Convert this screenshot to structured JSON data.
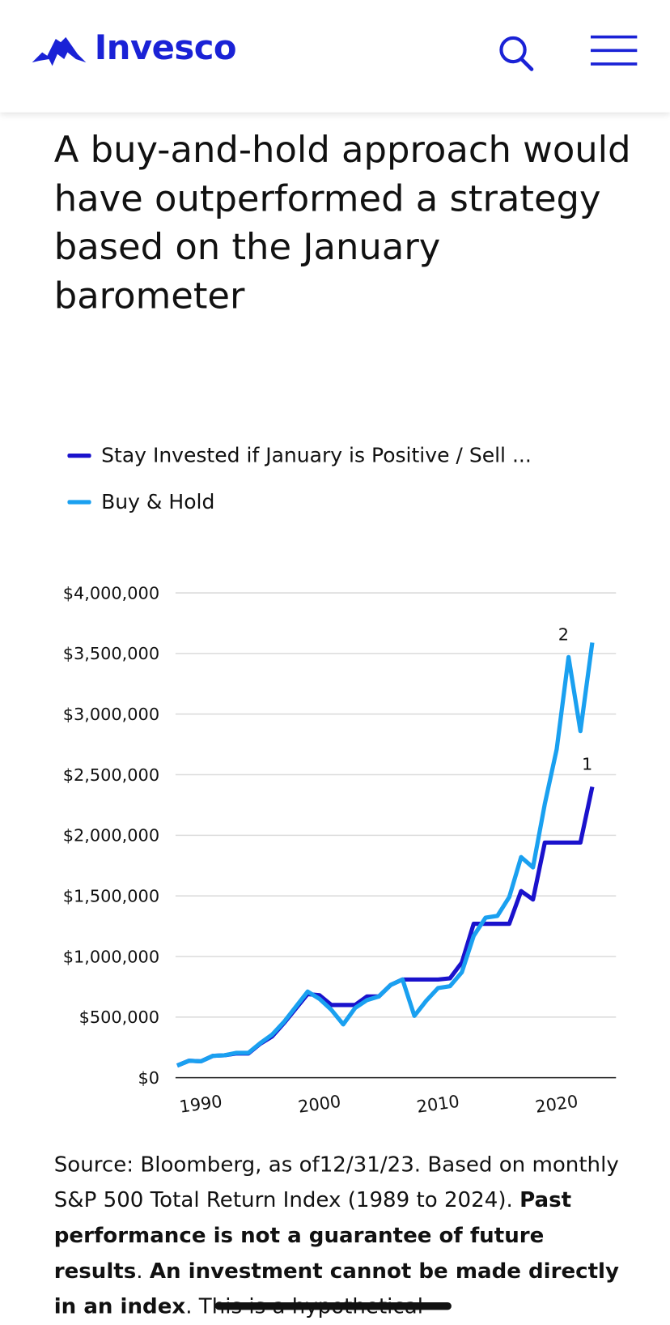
{
  "header": {
    "logo": "Invesco"
  },
  "title": "A buy-and-hold approach would have outperformed a strategy based on the January barometer",
  "chart_data": {
    "type": "line",
    "x": [
      1988,
      1989,
      1990,
      1991,
      1992,
      1993,
      1994,
      1995,
      1996,
      1997,
      1998,
      1999,
      2000,
      2001,
      2002,
      2003,
      2004,
      2005,
      2006,
      2007,
      2008,
      2009,
      2010,
      2011,
      2012,
      2013,
      2014,
      2015,
      2016,
      2017,
      2018,
      2019,
      2020,
      2021,
      2022,
      2023
    ],
    "series": [
      {
        "name": "Stay Invested if January is Positive / Sell ...",
        "color": "#1a12cc",
        "values": [
          100000,
          140000,
          135000,
          180000,
          185000,
          200000,
          200000,
          280000,
          340000,
          450000,
          570000,
          690000,
          680000,
          600000,
          600000,
          600000,
          670000,
          670000,
          765000,
          810000,
          810000,
          810000,
          810000,
          820000,
          950000,
          1270000,
          1270000,
          1270000,
          1270000,
          1540000,
          1470000,
          1940000,
          1940000,
          1940000,
          1940000,
          2400000
        ]
      },
      {
        "name": "Buy & Hold",
        "color": "#1aa0f0",
        "values": [
          100000,
          140000,
          135000,
          180000,
          185000,
          205000,
          205000,
          285000,
          355000,
          460000,
          585000,
          710000,
          650000,
          560000,
          440000,
          575000,
          640000,
          670000,
          765000,
          810000,
          510000,
          635000,
          740000,
          755000,
          870000,
          1170000,
          1320000,
          1335000,
          1490000,
          1820000,
          1735000,
          2260000,
          2710000,
          3470000,
          2860000,
          3590000
        ]
      }
    ],
    "annotations": [
      {
        "text": "1",
        "series": 0,
        "index": 35
      },
      {
        "text": "2",
        "series": 1,
        "index": 33
      }
    ],
    "xlim": [
      1988,
      2025
    ],
    "xticks": [
      1990,
      2000,
      2010,
      2020
    ],
    "ylim": [
      0,
      4000000
    ],
    "yticks": [
      {
        "value": 0,
        "label": "$0"
      },
      {
        "value": 500000,
        "label": "$500,000"
      },
      {
        "value": 1000000,
        "label": "$1,000,000"
      },
      {
        "value": 1500000,
        "label": "$1,500,000"
      },
      {
        "value": 2000000,
        "label": "$2,000,000"
      },
      {
        "value": 2500000,
        "label": "$2,500,000"
      },
      {
        "value": 3000000,
        "label": "$3,000,000"
      },
      {
        "value": 3500000,
        "label": "$3,500,000"
      },
      {
        "value": 4000000,
        "label": "$4,000,000"
      }
    ],
    "grid": true
  },
  "source": [
    {
      "text": "Source: Bloomberg, as of12/31/23. Based on monthly S&P 500 Total Return Index (1989 to 2024). ",
      "bold": false
    },
    {
      "text": "Past performance is not a guarantee of future results",
      "bold": true
    },
    {
      "text": ". ",
      "bold": false
    },
    {
      "text": "An investment cannot be made directly in an index",
      "bold": true
    },
    {
      "text": ". This is a hypothetical",
      "bold": false
    }
  ]
}
